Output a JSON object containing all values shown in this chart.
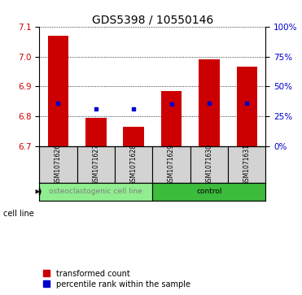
{
  "title": "GDS5398 / 10550146",
  "samples": [
    "GSM1071626",
    "GSM1071627",
    "GSM1071628",
    "GSM1071629",
    "GSM1071630",
    "GSM1071631"
  ],
  "bar_bottoms": [
    6.7,
    6.7,
    6.7,
    6.7,
    6.7,
    6.7
  ],
  "bar_tops": [
    7.07,
    6.795,
    6.765,
    6.885,
    6.99,
    6.965
  ],
  "blue_dots": [
    6.845,
    6.825,
    6.825,
    6.84,
    6.845,
    6.845
  ],
  "bar_color": "#cc0000",
  "dot_color": "#0000cc",
  "ylim": [
    6.7,
    7.1
  ],
  "yticks_left": [
    6.7,
    6.8,
    6.9,
    7.0,
    7.1
  ],
  "yticks_right_vals": [
    0,
    25,
    50,
    75,
    100
  ],
  "groups": [
    {
      "label": "osteoclastogenic cell line",
      "start": 0,
      "end": 3,
      "color": "#90ee90",
      "text_color": "#808080"
    },
    {
      "label": "control",
      "start": 3,
      "end": 6,
      "color": "#3dbb3d",
      "text_color": "#000000"
    }
  ],
  "cell_line_label": "cell line",
  "legend_items": [
    {
      "color": "#cc0000",
      "label": "transformed count"
    },
    {
      "color": "#0000cc",
      "label": "percentile rank within the sample"
    }
  ],
  "bar_width": 0.55,
  "bg_color": "#ffffff",
  "sample_box_color": "#d3d3d3",
  "title_fontsize": 10,
  "tick_fontsize": 7.5,
  "sample_fontsize": 5.5,
  "group_fontsize": 6.5,
  "legend_fontsize": 7
}
